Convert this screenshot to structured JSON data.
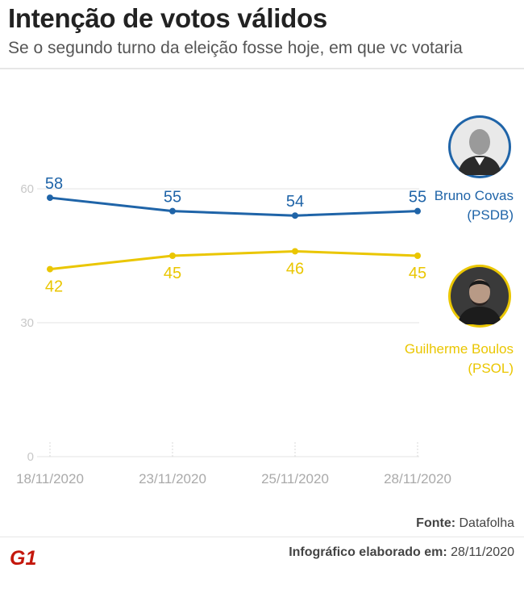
{
  "header": {
    "title": "Intenção de votos válidos",
    "subtitle": "Se o segundo turno da eleição fosse hoje, em que vc votaria"
  },
  "chart_data": {
    "type": "line",
    "title": "Intenção de votos válidos",
    "subtitle": "Se o segundo turno da eleição fosse hoje, em que vc votaria",
    "xlabel": "",
    "ylabel": "",
    "x": [
      "18/11/2020",
      "23/11/2020",
      "25/11/2020",
      "28/11/2020"
    ],
    "yticks": [
      0,
      30,
      60
    ],
    "ylim": [
      0,
      60
    ],
    "grid": true,
    "series": [
      {
        "name": "Bruno Covas (PSDB)",
        "color": "#1f64a8",
        "values": [
          58,
          55,
          54,
          55
        ]
      },
      {
        "name": "Guilherme Boulos (PSOL)",
        "color": "#eac600",
        "values": [
          42,
          45,
          46,
          45
        ]
      }
    ]
  },
  "candidates": [
    {
      "name": "Bruno Covas",
      "party": "(PSDB)",
      "color": "#1f64a8",
      "photo_ring": "#1f64a8",
      "icon": "person-photo-icon"
    },
    {
      "name": "Guilherme Boulos",
      "party": "(PSOL)",
      "color": "#eac600",
      "photo_ring": "#eac600",
      "icon": "person-photo-icon"
    }
  ],
  "footer": {
    "source_label": "Fonte:",
    "source_value": "Datafolha",
    "credit_label": "Infográfico elaborado em:",
    "credit_value": "28/11/2020",
    "logo_text": "G1",
    "logo_color": "#c4170c"
  }
}
